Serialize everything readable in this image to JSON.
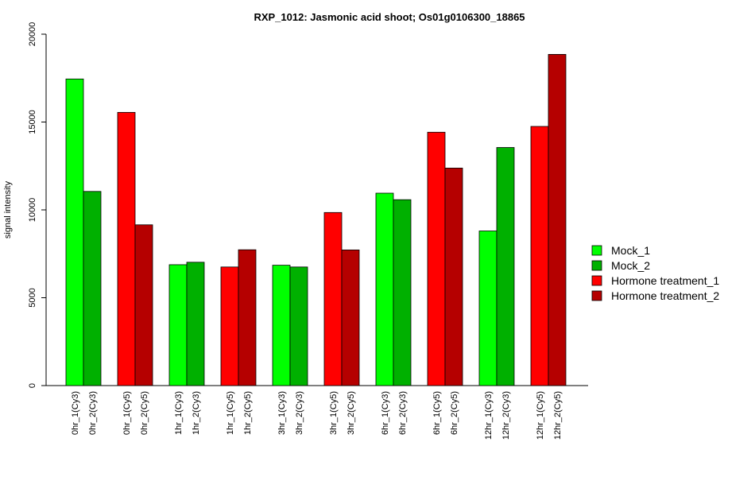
{
  "chart_data": {
    "type": "bar",
    "title": "RXP_1012: Jasmonic acid shoot; Os01g0106300_18865",
    "ylabel": "signal intensity",
    "xlabel": "",
    "ylim": [
      0,
      20000
    ],
    "yticks": [
      0,
      5000,
      10000,
      15000,
      20000
    ],
    "grid": false,
    "legend_position": "right",
    "bars": [
      {
        "label": "0hr_1(Cy3)",
        "value": 17450,
        "series": "Mock_1"
      },
      {
        "label": "0hr_2(Cy3)",
        "value": 11050,
        "series": "Mock_2"
      },
      {
        "label": "0hr_1(Cy5)",
        "value": 15550,
        "series": "Hormone treatment_1"
      },
      {
        "label": "0hr_2(Cy5)",
        "value": 9150,
        "series": "Hormone treatment_2"
      },
      {
        "label": "1hr_1(Cy3)",
        "value": 6880,
        "series": "Mock_1"
      },
      {
        "label": "1hr_2(Cy3)",
        "value": 7020,
        "series": "Mock_2"
      },
      {
        "label": "1hr_1(Cy5)",
        "value": 6750,
        "series": "Hormone treatment_1"
      },
      {
        "label": "1hr_2(Cy5)",
        "value": 7730,
        "series": "Hormone treatment_2"
      },
      {
        "label": "3hr_1(Cy3)",
        "value": 6850,
        "series": "Mock_1"
      },
      {
        "label": "3hr_2(Cy3)",
        "value": 6750,
        "series": "Mock_2"
      },
      {
        "label": "3hr_1(Cy5)",
        "value": 9850,
        "series": "Hormone treatment_1"
      },
      {
        "label": "3hr_2(Cy5)",
        "value": 7720,
        "series": "Hormone treatment_2"
      },
      {
        "label": "6hr_1(Cy3)",
        "value": 10950,
        "series": "Mock_1"
      },
      {
        "label": "6hr_2(Cy3)",
        "value": 10580,
        "series": "Mock_2"
      },
      {
        "label": "6hr_1(Cy5)",
        "value": 14420,
        "series": "Hormone treatment_1"
      },
      {
        "label": "6hr_2(Cy5)",
        "value": 12380,
        "series": "Hormone treatment_2"
      },
      {
        "label": "12hr_1(Cy3)",
        "value": 8800,
        "series": "Mock_1"
      },
      {
        "label": "12hr_2(Cy3)",
        "value": 13550,
        "series": "Mock_2"
      },
      {
        "label": "12hr_1(Cy5)",
        "value": 14750,
        "series": "Hormone treatment_1"
      },
      {
        "label": "12hr_2(Cy5)",
        "value": 18850,
        "series": "Hormone treatment_2"
      }
    ],
    "legend": [
      {
        "name": "Mock_1",
        "color": "#00ff00"
      },
      {
        "name": "Mock_2",
        "color": "#00b000"
      },
      {
        "name": "Hormone treatment_1",
        "color": "#ff0000"
      },
      {
        "name": "Hormone treatment_2",
        "color": "#b50000"
      }
    ]
  }
}
